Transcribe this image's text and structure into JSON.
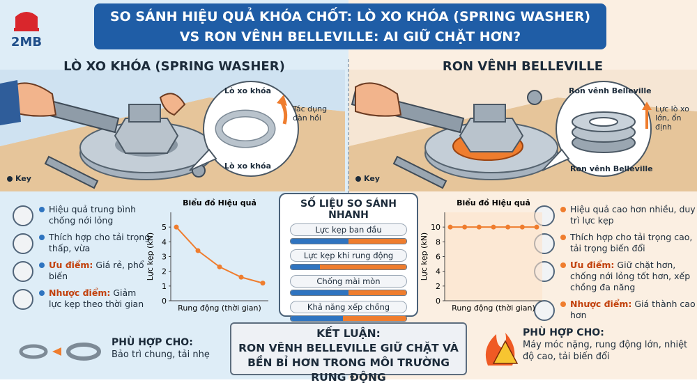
{
  "logo": "2MB",
  "header": {
    "title_lines": [
      "SO SÁNH HIỆU QUẢ KHÓA CHỐT: LÒ XO KHÓA (SPRING WASHER)",
      "VS RON VÊNH BELLEVILLE: AI GIỮ CHẶT HƠN?"
    ]
  },
  "left": {
    "heading": "LÒ XO KHÓA (SPRING WASHER)",
    "callout": {
      "top": "Lò xo khóa",
      "note": "Tác dụng đàn hồi",
      "bottom": "Lò xo khóa"
    },
    "key": "Key",
    "bullets": [
      {
        "text": "Hiệu quả trung bình chống nới lỏng"
      },
      {
        "text": "Thích hợp cho tải trọng thấp, vừa"
      },
      {
        "lead": "Ưu điểm:",
        "text": "Giá rẻ, phổ biến"
      },
      {
        "lead": "Nhược điểm:",
        "text": "Giảm lực kẹp theo thời gian"
      }
    ],
    "suited": {
      "label": "PHÙ HỢP CHO:",
      "text": "Bảo trì chung, tải nhẹ"
    }
  },
  "right": {
    "heading": "RON VÊNH BELLEVILLE",
    "callout": {
      "top": "Ron vênh Belleville",
      "note": "Lực lò xo lớn, ổn định",
      "bottom": "Ron vênh Belleville"
    },
    "key": "Key",
    "bullets": [
      {
        "text": "Hiệu quả cao hơn nhiều, duy trì lực kẹp"
      },
      {
        "text": "Thích hợp cho tải trọng cao, tải trọng biến đổi"
      },
      {
        "lead": "Ưu điểm:",
        "text": "Giữ chặt hơn, chống nới lỏng tốt hơn, xếp chồng đa năng"
      },
      {
        "lead": "Nhược điểm:",
        "text": "Giá thành cao hơn"
      }
    ],
    "suited": {
      "label": "PHÙ HỢP CHO:",
      "text": "Máy móc nặng, rung động lớn, nhiệt độ cao, tải biến đổi"
    }
  },
  "comparison": {
    "title": "SỐ LIỆU SO SÁNH NHANH",
    "rows": [
      "Lực kẹp ban đầu",
      "Lực kẹp khi rung động",
      "Chống mài mòn",
      "Khả năng xếp chồng"
    ]
  },
  "conclusion": {
    "label": "KẾT LUẬN:",
    "lines": [
      "RON VÊNH BELLEVILLE GIỮ CHẶT VÀ",
      "BỀN BỈ HƠN TRONG MÔI TRƯỜNG RUNG ĐỘNG"
    ]
  },
  "chart_data": [
    {
      "type": "line",
      "title": "Biểu đồ Hiệu quả",
      "x_label": "Rung động (thời gian)",
      "y_label": "Lực kẹp (kN)",
      "categories": [
        null,
        null,
        null,
        null,
        null
      ],
      "series": [
        {
          "color": "#ef7d2e",
          "values": [
            5,
            3.4,
            2.3,
            1.6,
            1.2
          ]
        }
      ],
      "ylim": [
        0,
        6
      ],
      "yticks": [
        0,
        1,
        2,
        3,
        4,
        5
      ],
      "grid": false
    },
    {
      "type": "line",
      "title": "Biểu đồ Hiệu quả",
      "x_label": "Rung động (thời gian)",
      "y_label": "Lực kẹp (kN)",
      "categories": [
        null,
        null,
        null,
        null,
        null,
        null,
        null
      ],
      "series": [
        {
          "color": "#ef7d2e",
          "values": [
            10,
            10,
            10,
            10,
            10,
            10,
            10
          ]
        }
      ],
      "ylim": [
        0,
        12
      ],
      "yticks": [
        0,
        2,
        4,
        6,
        8,
        10
      ],
      "grid": false
    }
  ]
}
